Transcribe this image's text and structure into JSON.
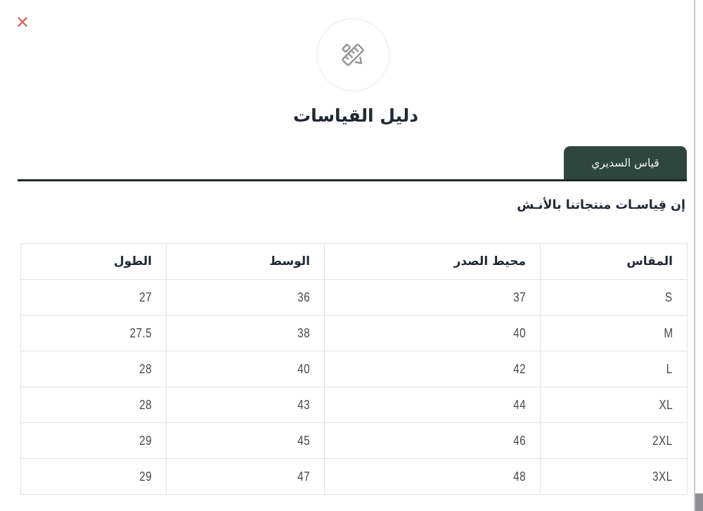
{
  "modal": {
    "title": "دليل القياسات",
    "tab_label": "قياس السديري",
    "note": "إن قِياسـات منتجاتنا بالأنـش",
    "close_glyph": "✕"
  },
  "table": {
    "headers": [
      "المقاس",
      "محيط الصدر",
      "الوسط",
      "الطول"
    ],
    "rows": [
      [
        "S",
        "37",
        "36",
        "27"
      ],
      [
        "M",
        "40",
        "38",
        "27.5"
      ],
      [
        "L",
        "42",
        "40",
        "28"
      ],
      [
        "XL",
        "44",
        "43",
        "28"
      ],
      [
        "2XL",
        "46",
        "45",
        "29"
      ],
      [
        "3XL",
        "48",
        "47",
        "29"
      ]
    ]
  },
  "icons": {
    "badge_icon": "ruler-pencil-icon",
    "close_icon": "x-close-icon"
  },
  "colors": {
    "tab_background": "#2e463d",
    "tab_text": "#f2f5f1",
    "underline": "#1c2824",
    "close_icon": "#d9645f",
    "badge_icon": "#97999c",
    "heading_text": "#212832",
    "cell_text": "#46484b",
    "table_border": "#e2e2e4"
  }
}
